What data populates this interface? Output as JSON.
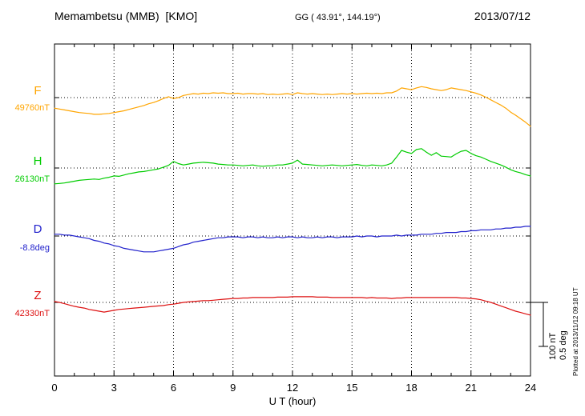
{
  "header": {
    "station": "Memambetsu (MMB)  [KMO]",
    "coordinates": "GG ( 43.91°, 144.19°)",
    "date": "2013/07/12"
  },
  "axes": {
    "x_title": "U T (hour)",
    "x_ticks": [
      "0",
      "3",
      "6",
      "9",
      "12",
      "15",
      "18",
      "21",
      "24"
    ]
  },
  "scale_bar": {
    "label_nt": "100 nT",
    "label_deg": "0.5 deg"
  },
  "plotted_note": "Plotted at 2013/11/12 09:18 UT",
  "chart_data": {
    "type": "line",
    "title": "Memambetsu (MMB) [KMO] magnetogram 2013/07/12",
    "xlabel": "U T (hour)",
    "ylabel": "",
    "x_range": [
      0,
      24
    ],
    "x_step_hours": 0.25,
    "x_tick_values": [
      0,
      3,
      6,
      9,
      12,
      15,
      18,
      21,
      24
    ],
    "grid": "dotted vertical lines every 3 hours; dotted horizontal baseline per channel",
    "legend_position": "left channel labels",
    "scale": {
      "bar_nT": 100,
      "bar_deg": 0.5
    },
    "series": [
      {
        "name": "F",
        "unit": "nT",
        "baseline_label": "49760nT",
        "baseline_value": 49760,
        "color": "#FFA500",
        "offsets": [
          -24,
          -26,
          -28,
          -30,
          -32,
          -34,
          -35,
          -36,
          -38,
          -38,
          -37,
          -36,
          -34,
          -32,
          -30,
          -27,
          -24,
          -21,
          -18,
          -14,
          -11,
          -7,
          -2,
          2,
          -2,
          0,
          5,
          7,
          9,
          8,
          10,
          9,
          11,
          10,
          11,
          9,
          9,
          10,
          8,
          9,
          9,
          8,
          9,
          7,
          8,
          7,
          8,
          9,
          7,
          11,
          9,
          8,
          9,
          8,
          7,
          8,
          7,
          8,
          9,
          8,
          9,
          8,
          9,
          10,
          9,
          10,
          9,
          11,
          11,
          15,
          22,
          20,
          18,
          22,
          25,
          23,
          20,
          18,
          16,
          18,
          22,
          20,
          18,
          16,
          13,
          10,
          6,
          1,
          -5,
          -11,
          -17,
          -24,
          -33,
          -40,
          -48,
          -56,
          -65
        ]
      },
      {
        "name": "H",
        "unit": "nT",
        "baseline_label": "26130nT",
        "baseline_value": 26130,
        "color": "#00CC00",
        "offsets": [
          -36,
          -35,
          -34,
          -32,
          -30,
          -28,
          -27,
          -26,
          -25,
          -26,
          -23,
          -21,
          -18,
          -19,
          -16,
          -13,
          -11,
          -9,
          -8,
          -6,
          -4,
          -2,
          2,
          6,
          15,
          10,
          7,
          9,
          11,
          12,
          13,
          12,
          11,
          9,
          8,
          7,
          7,
          6,
          5,
          6,
          7,
          5,
          4,
          5,
          5,
          7,
          7,
          9,
          11,
          18,
          9,
          8,
          7,
          6,
          5,
          6,
          7,
          6,
          5,
          6,
          7,
          8,
          6,
          5,
          7,
          6,
          5,
          7,
          11,
          25,
          40,
          36,
          33,
          42,
          44,
          36,
          29,
          35,
          27,
          26,
          25,
          32,
          38,
          40,
          33,
          28,
          25,
          20,
          15,
          11,
          7,
          2,
          -4,
          -8,
          -11,
          -15,
          -18
        ]
      },
      {
        "name": "D",
        "unit": "deg",
        "baseline_label": "-8.8deg",
        "baseline_value": -8.8,
        "color": "#2222CC",
        "offsets": [
          0.02,
          0.02,
          0.01,
          0.01,
          0.0,
          -0.01,
          -0.02,
          -0.03,
          -0.05,
          -0.06,
          -0.08,
          -0.09,
          -0.11,
          -0.12,
          -0.14,
          -0.15,
          -0.16,
          -0.17,
          -0.18,
          -0.18,
          -0.18,
          -0.17,
          -0.16,
          -0.15,
          -0.14,
          -0.12,
          -0.1,
          -0.09,
          -0.07,
          -0.06,
          -0.05,
          -0.04,
          -0.03,
          -0.02,
          -0.02,
          -0.01,
          -0.01,
          -0.01,
          -0.02,
          -0.01,
          -0.01,
          -0.02,
          -0.01,
          -0.02,
          -0.02,
          -0.01,
          -0.02,
          -0.01,
          -0.01,
          -0.02,
          -0.01,
          -0.02,
          -0.02,
          -0.01,
          -0.02,
          -0.01,
          -0.01,
          -0.02,
          -0.01,
          -0.01,
          -0.01,
          0.0,
          -0.01,
          0.0,
          0.0,
          -0.01,
          0.0,
          0.0,
          0.0,
          0.01,
          0.0,
          0.01,
          0.01,
          0.01,
          0.02,
          0.02,
          0.02,
          0.03,
          0.03,
          0.04,
          0.04,
          0.04,
          0.05,
          0.05,
          0.06,
          0.06,
          0.07,
          0.07,
          0.07,
          0.08,
          0.08,
          0.09,
          0.09,
          0.1,
          0.1,
          0.11,
          0.11
        ]
      },
      {
        "name": "Z",
        "unit": "nT",
        "baseline_label": "42330nT",
        "baseline_value": 42330,
        "color": "#DD1111",
        "offsets": [
          2,
          0,
          -3,
          -6,
          -9,
          -11,
          -13,
          -16,
          -18,
          -20,
          -22,
          -20,
          -18,
          -16,
          -15,
          -14,
          -13,
          -12,
          -11,
          -10,
          -9,
          -8,
          -7,
          -5,
          -4,
          -2,
          0,
          1,
          2,
          3,
          4,
          4,
          5,
          6,
          7,
          8,
          9,
          9,
          10,
          10,
          11,
          11,
          11,
          11,
          11,
          12,
          12,
          12,
          13,
          13,
          13,
          13,
          13,
          12,
          12,
          12,
          11,
          11,
          11,
          11,
          11,
          11,
          11,
          10,
          11,
          10,
          10,
          10,
          9,
          10,
          10,
          11,
          11,
          11,
          11,
          11,
          11,
          11,
          11,
          11,
          11,
          11,
          10,
          10,
          9,
          8,
          6,
          3,
          0,
          -4,
          -8,
          -12,
          -16,
          -20,
          -23,
          -26,
          -29
        ]
      }
    ]
  }
}
